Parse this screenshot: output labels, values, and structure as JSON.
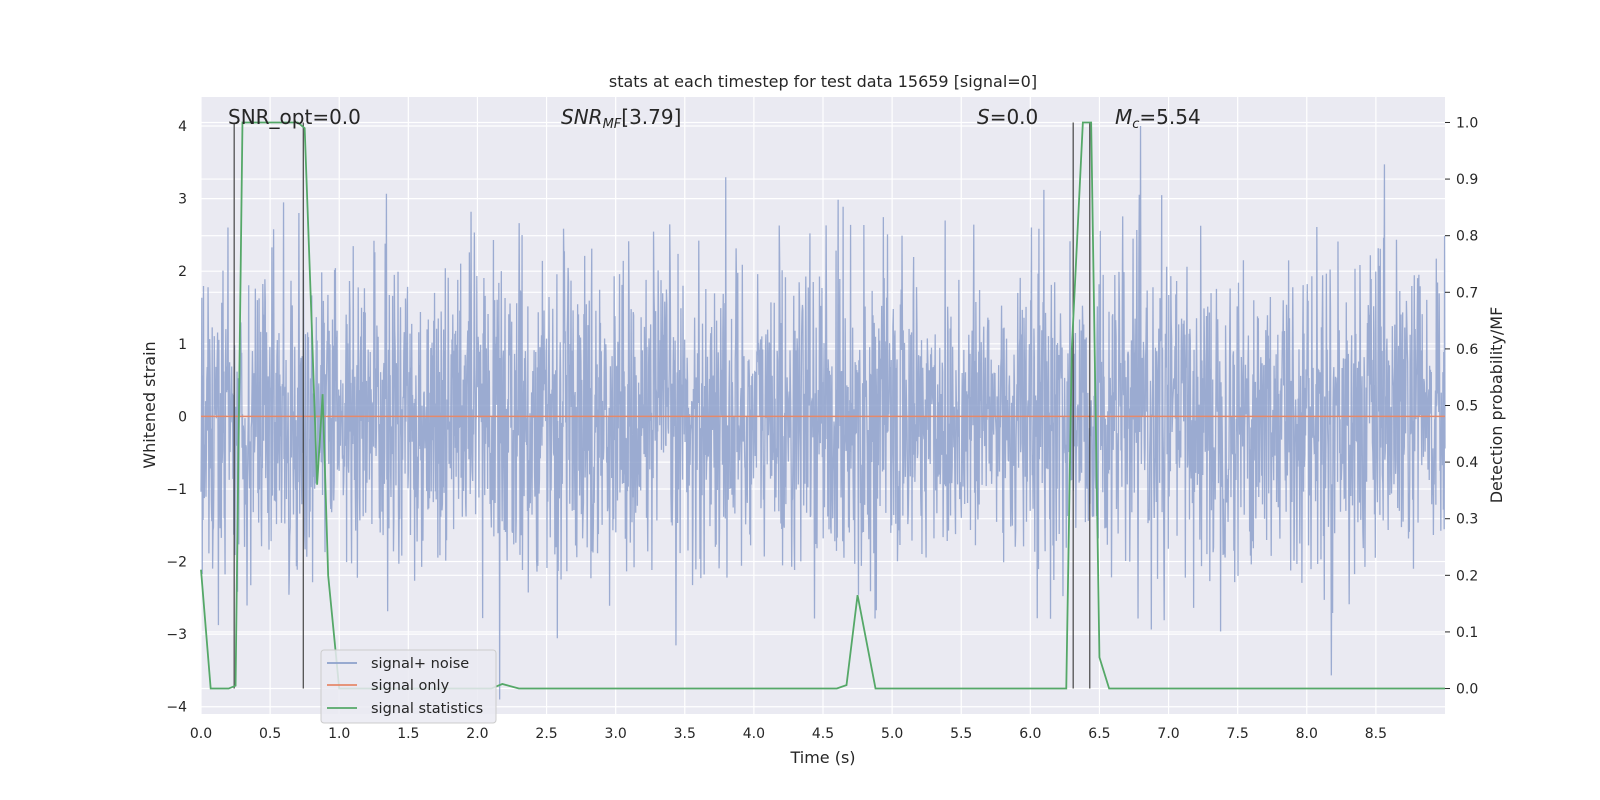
{
  "chart_data": {
    "type": "line",
    "title": "stats at each timestep for test data 15659 [signal=0]",
    "xlabel": "Time (s)",
    "ylabel_left": "Whitened strain",
    "ylabel_right": "Detection probability/MF",
    "xlim": [
      0.0,
      9.0
    ],
    "ylim_left": [
      -4.1,
      4.4
    ],
    "ylim_right": [
      -0.045,
      1.045
    ],
    "xticks": [
      "0.0",
      "0.5",
      "1.0",
      "1.5",
      "2.0",
      "2.5",
      "3.0",
      "3.5",
      "4.0",
      "4.5",
      "5.0",
      "5.5",
      "6.0",
      "6.5",
      "7.0",
      "7.5",
      "8.0",
      "8.5"
    ],
    "yticks_left": [
      "4",
      "3",
      "2",
      "1",
      "0",
      "−1",
      "−2",
      "−3",
      "−4"
    ],
    "yticks_right": [
      "1.0",
      "0.9",
      "0.8",
      "0.7",
      "0.6",
      "0.5",
      "0.4",
      "0.3",
      "0.2",
      "0.1",
      "0.0"
    ],
    "grid": true,
    "legend_position": "lower-left",
    "annotations": {
      "snr_opt": "SNR_opt=0.0",
      "snr_mf": "[3.79]",
      "s": "=0.0",
      "mc": "=5.54"
    },
    "series": [
      {
        "name": "signal+ noise",
        "color": "#8da0cb",
        "axis": "left",
        "description_values": "noise-like whitened strain, roughly within -3.9 to 4.0"
      },
      {
        "name": "signal only",
        "color": "#e5896a",
        "axis": "left",
        "x": [
          0.0,
          9.0
        ],
        "values": [
          0.0,
          0.0
        ]
      },
      {
        "name": "signal statistics",
        "color": "#55a868",
        "axis": "right",
        "x": [
          0.0,
          0.07,
          0.2,
          0.25,
          0.3,
          0.7,
          0.75,
          0.8,
          0.84,
          0.88,
          0.92,
          1.0,
          1.1,
          2.1,
          2.18,
          2.3,
          4.6,
          4.67,
          4.75,
          4.88,
          5.0,
          6.26,
          6.3,
          6.38,
          6.44,
          6.5,
          6.57,
          9.0
        ],
        "values": [
          0.21,
          0.0,
          0.0,
          0.005,
          1.0,
          1.0,
          0.99,
          0.65,
          0.36,
          0.52,
          0.2,
          0.0,
          0.0,
          0.0,
          0.008,
          0.0,
          0.0,
          0.006,
          0.165,
          0.0,
          0.0,
          0.0,
          0.6,
          1.0,
          1.0,
          0.055,
          0.0,
          0.0
        ]
      }
    ],
    "vertical_lines_x": [
      0.24,
      0.74,
      6.31,
      6.43
    ]
  }
}
